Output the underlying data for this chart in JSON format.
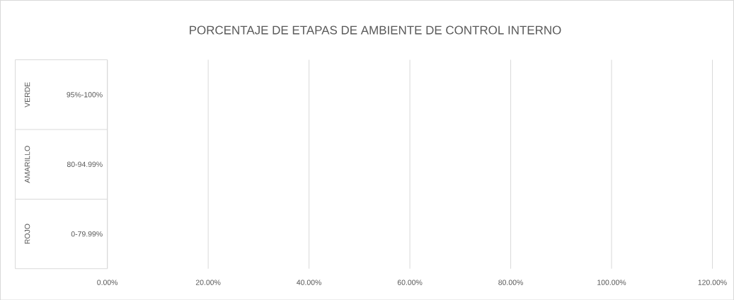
{
  "chart_data": {
    "type": "bar",
    "orientation": "horizontal",
    "title": "PORCENTAJE DE ETAPAS DE AMBIENTE DE CONTROL INTERNO",
    "categories": [
      "95%-100%",
      "80-94.99%",
      "0-79.99%"
    ],
    "values": [
      null,
      null,
      null
    ],
    "xlim": [
      0,
      120
    ],
    "xticks": [
      {
        "value": 0,
        "label": "0.00%"
      },
      {
        "value": 20,
        "label": "20.00%"
      },
      {
        "value": 40,
        "label": "40.00%"
      },
      {
        "value": 60,
        "label": "60.00%"
      },
      {
        "value": 80,
        "label": "80.00%"
      },
      {
        "value": 100,
        "label": "100.00%"
      },
      {
        "value": 120,
        "label": "120.00%"
      }
    ],
    "grid": "x",
    "annotations": [
      "VERDE",
      "AMARILLO",
      "ROJO"
    ]
  }
}
